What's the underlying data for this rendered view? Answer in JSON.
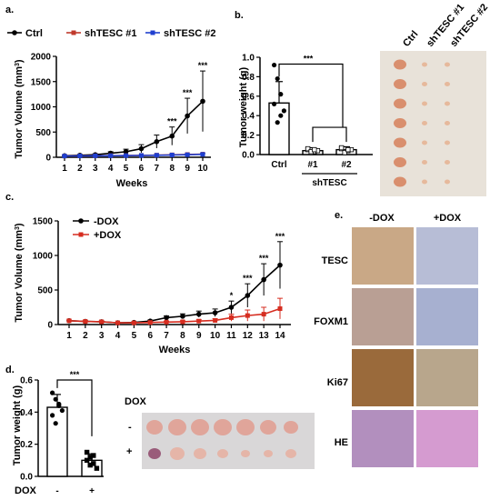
{
  "chart_data": [
    {
      "panel": "a.",
      "type": "line",
      "ylabel": "Tumor Volume (mm",
      "ylabel_sup": "3",
      "ylabel_end": ")",
      "xlabel": "Weeks",
      "x": [
        1,
        2,
        3,
        4,
        5,
        6,
        7,
        8,
        9,
        10
      ],
      "ylim": [
        0,
        2000
      ],
      "yticks": [
        "0",
        "500",
        "1000",
        "1500",
        "2000"
      ],
      "series": [
        {
          "name": "Ctrl",
          "color": "#000000",
          "values": [
            30,
            40,
            50,
            80,
            110,
            170,
            310,
            420,
            820,
            1110
          ],
          "err": [
            10,
            15,
            20,
            30,
            50,
            80,
            130,
            180,
            350,
            600
          ]
        },
        {
          "name": "shTESC #1",
          "color": "#c0392b",
          "values": [
            25,
            28,
            30,
            32,
            35,
            38,
            42,
            48,
            55,
            62
          ],
          "err": [
            5,
            5,
            6,
            6,
            7,
            8,
            9,
            10,
            12,
            15
          ]
        },
        {
          "name": "shTESC #2",
          "color": "#1f3fcf",
          "values": [
            25,
            27,
            29,
            31,
            33,
            36,
            40,
            45,
            50,
            58
          ],
          "err": [
            5,
            5,
            6,
            6,
            7,
            8,
            9,
            10,
            12,
            15
          ]
        }
      ],
      "annotations": [
        {
          "x": 8,
          "text": "***"
        },
        {
          "x": 9,
          "text": "***"
        },
        {
          "x": 10,
          "text": "***"
        }
      ]
    },
    {
      "panel": "b.",
      "type": "bar",
      "ylabel": "Tumor weight (g)",
      "categories": [
        "Ctrl",
        "#1",
        "#2"
      ],
      "group_label": "shTESC",
      "values": [
        0.53,
        0.04,
        0.05
      ],
      "err": [
        0.22,
        0.03,
        0.03
      ],
      "ylim": [
        0,
        1.0
      ],
      "yticks": [
        "0.0",
        "0.2",
        "0.4",
        "0.6",
        "0.8",
        "1.0"
      ],
      "points": [
        [
          0.92,
          0.78,
          0.62,
          0.45,
          0.52,
          0.33,
          0.4
        ],
        [
          0.05,
          0.02,
          0.03,
          0.04,
          0.06,
          0.03,
          0.05
        ],
        [
          0.06,
          0.03,
          0.04,
          0.05,
          0.07,
          0.02,
          0.05
        ]
      ],
      "significance": "***"
    },
    {
      "panel": "c.",
      "type": "line",
      "ylabel": "Tumor Volume (mm",
      "ylabel_sup": "3",
      "ylabel_end": ")",
      "xlabel": "Weeks",
      "x": [
        1,
        2,
        3,
        4,
        5,
        6,
        7,
        8,
        9,
        10,
        11,
        12,
        13,
        14
      ],
      "ylim": [
        0,
        1500
      ],
      "yticks": [
        "0",
        "500",
        "1000",
        "1500"
      ],
      "series": [
        {
          "name": "-DOX",
          "color": "#000000",
          "values": [
            55,
            45,
            40,
            25,
            30,
            50,
            100,
            120,
            150,
            170,
            250,
            420,
            650,
            860
          ],
          "err": [
            10,
            10,
            10,
            8,
            10,
            15,
            25,
            35,
            45,
            55,
            90,
            170,
            230,
            340
          ]
        },
        {
          "name": "+DOX",
          "color": "#d62d20",
          "values": [
            55,
            45,
            40,
            25,
            25,
            30,
            35,
            40,
            50,
            60,
            100,
            130,
            150,
            230
          ],
          "err": [
            10,
            10,
            10,
            8,
            8,
            10,
            12,
            15,
            20,
            25,
            50,
            80,
            100,
            150
          ]
        }
      ],
      "annotations": [
        {
          "x": 11,
          "text": "*"
        },
        {
          "x": 12,
          "text": "***"
        },
        {
          "x": 13,
          "text": "***"
        },
        {
          "x": 14,
          "text": "***"
        }
      ]
    },
    {
      "panel": "d.",
      "type": "bar",
      "ylabel": "Tumor weight (g)",
      "xaxis_label": "DOX",
      "categories": [
        "-",
        "+"
      ],
      "values": [
        0.43,
        0.1
      ],
      "err": [
        0.08,
        0.04
      ],
      "ylim": [
        0,
        0.6
      ],
      "yticks": [
        "0.0",
        "0.2",
        "0.4",
        "0.6"
      ],
      "points": [
        [
          0.52,
          0.48,
          0.45,
          0.41,
          0.38,
          0.33,
          0.44
        ],
        [
          0.15,
          0.12,
          0.08,
          0.05,
          0.1,
          0.07,
          0.13
        ]
      ],
      "significance": "***"
    }
  ],
  "photos": {
    "b_headers": [
      "Ctrl",
      "shTESC #1",
      "shTESC #2"
    ],
    "d_title": "DOX",
    "d_rows": [
      "-",
      "+"
    ]
  },
  "ihc": {
    "panel": "e.",
    "cols": [
      "-DOX",
      "+DOX"
    ],
    "rows": [
      "TESC",
      "FOXM1",
      "Ki67",
      "HE"
    ]
  }
}
